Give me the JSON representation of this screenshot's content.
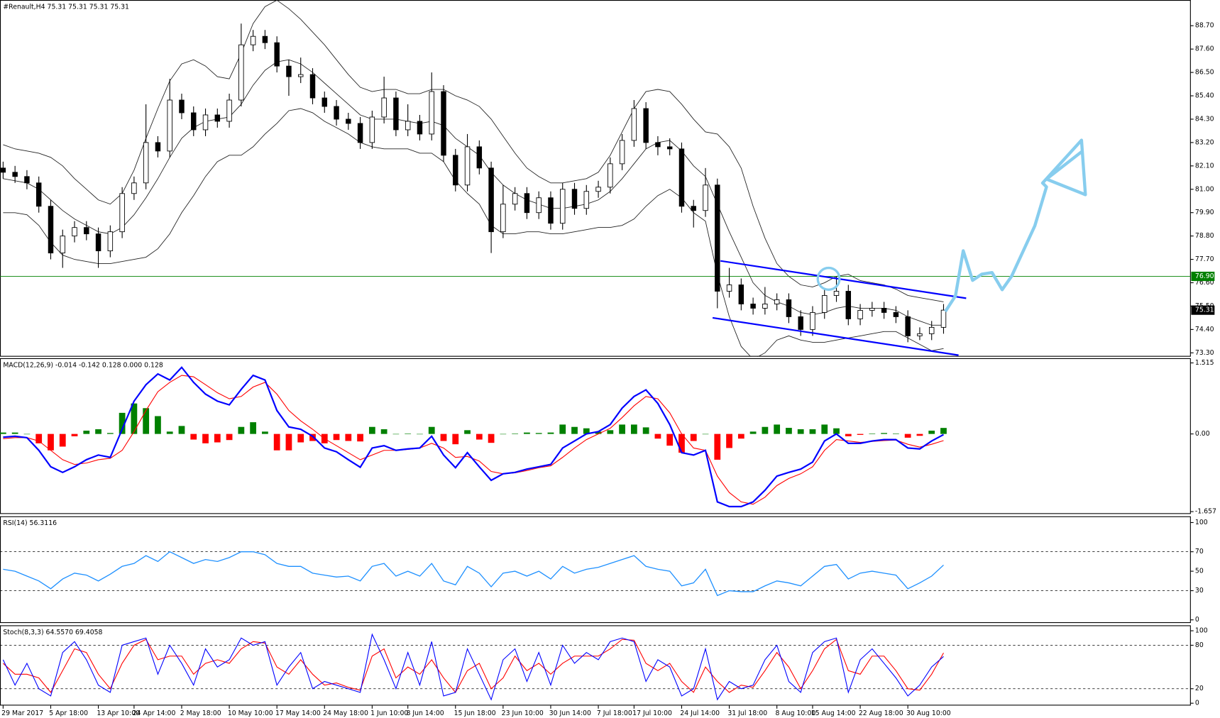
{
  "chart_data": [
    {
      "type": "candlestick",
      "title": "#Renault,H4  75.31 75.31 75.31 75.31",
      "categories": [
        "29 Mar 2017",
        null,
        null,
        null,
        "5 Apr 18:00",
        null,
        null,
        null,
        "13 Apr 10:00",
        null,
        null,
        "24 Apr 14:00",
        null,
        null,
        null,
        "2 May 18:00",
        null,
        null,
        null,
        "10 May 10:00",
        null,
        null,
        null,
        "17 May 14:00",
        null,
        null,
        null,
        "24 May 18:00",
        null,
        null,
        null,
        "1 Jun 10:00",
        null,
        null,
        "8 Jun 14:00",
        null,
        null,
        null,
        "15 Jun 18:00",
        null,
        null,
        null,
        "23 Jun 10:00",
        null,
        null,
        null,
        "30 Jun 14:00",
        null,
        null,
        null,
        "7 Jul 18:00",
        null,
        null,
        "17 Jul 10:00",
        null,
        null,
        null,
        "24 Jul 14:00",
        null,
        null,
        null,
        "31 Jul 18:00",
        null,
        null,
        null,
        "8 Aug 10:00",
        null,
        null,
        "15 Aug 14:00",
        null,
        null,
        null,
        "22 Aug 18:00",
        null,
        null,
        null,
        "30 Aug 10:00",
        null,
        null,
        null
      ],
      "open": [
        82.0,
        81.8,
        81.6,
        81.3,
        80.2,
        78.0,
        78.8,
        79.2,
        78.9,
        78.1,
        79.0,
        80.8,
        81.3,
        83.2,
        82.8,
        85.2,
        84.6,
        83.8,
        84.5,
        84.2,
        85.2,
        87.8,
        88.2,
        87.9,
        86.8,
        86.3,
        86.4,
        85.3,
        84.9,
        84.3,
        84.1,
        83.2,
        84.4,
        85.3,
        83.8,
        84.2,
        83.6,
        85.6,
        82.6,
        81.2,
        83.0,
        82.0,
        79.0,
        80.3,
        80.8,
        79.9,
        80.6,
        79.4,
        81.0,
        80.1,
        80.9,
        81.1,
        82.2,
        83.3,
        84.8,
        83.2,
        83.0,
        82.9,
        80.2,
        80.0,
        81.2,
        76.2,
        76.5,
        75.6,
        75.4,
        75.6,
        75.8,
        75.0,
        74.4,
        75.2,
        76.0,
        76.2,
        74.9,
        75.3,
        75.4,
        75.2,
        75.0,
        74.1,
        74.2,
        74.5
      ],
      "high": [
        82.3,
        82.1,
        81.9,
        81.6,
        80.5,
        79.1,
        79.5,
        79.5,
        79.2,
        79.3,
        81.1,
        81.6,
        85.0,
        83.5,
        86.2,
        85.5,
        84.9,
        84.8,
        84.8,
        85.5,
        88.8,
        88.5,
        88.5,
        88.2,
        87.1,
        87.2,
        86.7,
        85.6,
        85.2,
        84.6,
        84.4,
        84.7,
        86.3,
        85.6,
        85.0,
        84.5,
        86.5,
        85.9,
        82.9,
        83.6,
        83.3,
        82.3,
        81.2,
        81.1,
        81.1,
        80.9,
        80.9,
        81.3,
        81.3,
        81.2,
        81.4,
        82.5,
        83.6,
        85.2,
        85.1,
        83.5,
        83.4,
        83.2,
        80.5,
        82.0,
        81.5,
        77.3,
        76.8,
        75.9,
        76.4,
        76.1,
        76.1,
        75.3,
        75.5,
        76.3,
        76.9,
        76.5,
        75.6,
        75.7,
        75.7,
        75.5,
        75.3,
        74.5,
        74.8,
        75.6
      ],
      "low": [
        81.5,
        81.3,
        81.0,
        79.9,
        77.7,
        77.3,
        78.5,
        78.6,
        77.3,
        77.8,
        78.7,
        80.5,
        81.0,
        82.5,
        82.5,
        84.3,
        83.5,
        83.5,
        83.9,
        83.9,
        84.9,
        87.5,
        87.6,
        86.5,
        85.4,
        86.0,
        85.0,
        84.6,
        84.0,
        83.8,
        82.9,
        82.9,
        84.1,
        83.5,
        83.5,
        83.3,
        83.3,
        82.3,
        80.9,
        80.9,
        81.7,
        78.0,
        78.7,
        80.0,
        79.6,
        79.6,
        79.1,
        79.1,
        79.8,
        79.8,
        80.6,
        80.8,
        81.9,
        83.0,
        82.9,
        82.6,
        82.6,
        79.9,
        79.2,
        79.7,
        75.4,
        75.9,
        75.3,
        75.1,
        75.1,
        75.3,
        74.7,
        74.1,
        74.1,
        74.9,
        75.7,
        74.6,
        74.6,
        75.0,
        74.9,
        74.7,
        73.8,
        73.9,
        73.9,
        74.2
      ],
      "close": [
        81.8,
        81.6,
        81.3,
        80.2,
        78.0,
        78.8,
        79.2,
        78.9,
        78.1,
        79.0,
        80.8,
        81.3,
        83.2,
        82.8,
        85.2,
        84.6,
        83.8,
        84.5,
        84.2,
        85.2,
        87.8,
        88.2,
        87.9,
        86.8,
        86.3,
        86.4,
        85.3,
        84.9,
        84.3,
        84.1,
        83.2,
        84.4,
        85.3,
        83.8,
        84.2,
        83.6,
        85.6,
        82.6,
        81.2,
        83.0,
        82.0,
        79.0,
        80.3,
        80.8,
        79.9,
        80.6,
        79.4,
        81.0,
        80.1,
        80.9,
        81.1,
        82.2,
        83.3,
        84.8,
        83.2,
        83.0,
        82.9,
        80.2,
        80.0,
        81.2,
        76.2,
        76.5,
        75.6,
        75.4,
        75.6,
        75.8,
        75.0,
        74.4,
        75.2,
        76.0,
        76.2,
        74.9,
        75.3,
        75.4,
        75.2,
        75.0,
        74.1,
        74.2,
        74.5,
        75.31
      ],
      "bands": {
        "upper": [
          83.1,
          82.9,
          82.8,
          82.7,
          82.5,
          82.1,
          81.5,
          81.0,
          80.5,
          80.3,
          80.8,
          81.9,
          83.4,
          84.8,
          86.1,
          86.9,
          87.1,
          86.8,
          86.3,
          86.2,
          87.4,
          88.8,
          89.6,
          89.9,
          89.5,
          89.0,
          88.4,
          87.8,
          87.1,
          86.4,
          85.8,
          85.6,
          85.7,
          85.7,
          85.5,
          85.5,
          85.7,
          85.7,
          85.4,
          85.2,
          84.9,
          84.3,
          83.5,
          82.7,
          82.0,
          81.6,
          81.3,
          81.3,
          81.4,
          81.5,
          81.8,
          82.6,
          83.7,
          84.8,
          85.6,
          85.7,
          85.6,
          85.0,
          84.3,
          83.7,
          83.6,
          83.0,
          82.0,
          80.2,
          78.7,
          77.5,
          76.9,
          76.5,
          76.4,
          76.6,
          76.9,
          77.0,
          76.7,
          76.6,
          76.5,
          76.3,
          76.0,
          75.9,
          75.8,
          75.7
        ],
        "middle": [
          81.5,
          81.4,
          81.3,
          81.0,
          80.5,
          80.0,
          79.6,
          79.3,
          79.0,
          78.9,
          79.2,
          79.8,
          80.6,
          81.5,
          82.5,
          83.4,
          83.9,
          84.2,
          84.3,
          84.4,
          85.0,
          85.9,
          86.6,
          87.0,
          87.1,
          86.9,
          86.5,
          86.0,
          85.5,
          85.0,
          84.5,
          84.3,
          84.3,
          84.3,
          84.2,
          84.1,
          84.2,
          84.0,
          83.4,
          83.0,
          82.6,
          81.8,
          81.2,
          80.8,
          80.5,
          80.3,
          80.1,
          80.1,
          80.2,
          80.3,
          80.5,
          80.9,
          81.5,
          82.2,
          82.9,
          83.2,
          83.3,
          82.8,
          82.1,
          81.6,
          80.3,
          79.0,
          77.8,
          76.6,
          76.0,
          75.7,
          75.5,
          75.2,
          75.1,
          75.2,
          75.4,
          75.5,
          75.4,
          75.4,
          75.4,
          75.3,
          75.0,
          74.8,
          74.6,
          74.6
        ],
        "lower": [
          79.9,
          79.9,
          79.8,
          79.3,
          78.5,
          77.9,
          77.7,
          77.6,
          77.5,
          77.5,
          77.6,
          77.7,
          77.8,
          78.2,
          78.9,
          79.9,
          80.7,
          81.6,
          82.3,
          82.6,
          82.6,
          83.0,
          83.6,
          84.1,
          84.7,
          84.8,
          84.6,
          84.2,
          83.9,
          83.6,
          83.2,
          83.0,
          82.9,
          82.9,
          82.9,
          82.7,
          82.7,
          82.3,
          81.4,
          80.8,
          80.3,
          79.3,
          78.9,
          78.9,
          79.0,
          79.0,
          78.9,
          78.9,
          79.0,
          79.1,
          79.2,
          79.2,
          79.3,
          79.6,
          80.2,
          80.7,
          81.0,
          80.6,
          79.9,
          79.5,
          77.0,
          75.0,
          73.6,
          73.0,
          73.3,
          73.9,
          74.1,
          73.9,
          73.8,
          73.8,
          73.9,
          74.0,
          74.1,
          74.2,
          74.3,
          74.3,
          74.0,
          73.7,
          73.4,
          73.5
        ]
      },
      "ylim": [
        73.12,
        89.91
      ],
      "yticks": [
        {
          "value": 88.7,
          "label": "88.70"
        },
        {
          "value": 87.6,
          "label": "87.60"
        },
        {
          "value": 86.5,
          "label": "86.50"
        },
        {
          "value": 85.4,
          "label": "85.40"
        },
        {
          "value": 84.3,
          "label": "84.30"
        },
        {
          "value": 83.2,
          "label": "83.20"
        },
        {
          "value": 82.1,
          "label": "82.10"
        },
        {
          "value": 81.0,
          "label": "81.00"
        },
        {
          "value": 79.9,
          "label": "79.90"
        },
        {
          "value": 78.8,
          "label": "78.80"
        },
        {
          "value": 77.7,
          "label": "77.70"
        },
        {
          "value": 76.6,
          "label": "76.60"
        },
        {
          "value": 75.5,
          "label": "75.50"
        },
        {
          "value": 74.4,
          "label": "74.40"
        },
        {
          "value": 73.3,
          "label": "73.30"
        }
      ],
      "hline": {
        "value": 76.9,
        "label": "76.90",
        "color": "#008000"
      },
      "last": {
        "value": 75.31,
        "label": "75.31"
      },
      "trendlines": [
        {
          "x": [
            60.26,
            80.9
          ],
          "y": [
            77.63,
            75.87
          ]
        },
        {
          "x": [
            59.6,
            80.26
          ],
          "y": [
            74.95,
            73.19
          ]
        }
      ],
      "trendline_color": "#0000ff"
    },
    {
      "type": "macd",
      "title": "MACD(12,26,9) -0.014 -0.142 0.128 0.000 0.128",
      "macd": [
        -0.07,
        -0.05,
        -0.08,
        -0.35,
        -0.7,
        -0.82,
        -0.7,
        -0.55,
        -0.45,
        -0.5,
        0.1,
        0.7,
        1.05,
        1.28,
        1.15,
        1.42,
        1.1,
        0.85,
        0.7,
        0.62,
        0.95,
        1.25,
        1.15,
        0.5,
        0.15,
        0.1,
        -0.05,
        -0.3,
        -0.38,
        -0.55,
        -0.71,
        -0.3,
        -0.25,
        -0.35,
        -0.32,
        -0.3,
        -0.05,
        -0.45,
        -0.72,
        -0.4,
        -0.7,
        -0.99,
        -0.85,
        -0.82,
        -0.75,
        -0.7,
        -0.65,
        -0.3,
        -0.15,
        0.0,
        0.05,
        0.2,
        0.55,
        0.8,
        0.94,
        0.65,
        0.2,
        -0.4,
        -0.45,
        -0.35,
        -1.45,
        -1.55,
        -1.55,
        -1.45,
        -1.2,
        -0.9,
        -0.82,
        -0.75,
        -0.6,
        -0.15,
        0.0,
        -0.2,
        -0.2,
        -0.15,
        -0.12,
        -0.12,
        -0.3,
        -0.32,
        -0.15,
        -0.014
      ],
      "signal": [
        -0.1,
        -0.08,
        -0.08,
        -0.15,
        -0.35,
        -0.55,
        -0.65,
        -0.62,
        -0.55,
        -0.52,
        -0.35,
        0.05,
        0.5,
        0.9,
        1.1,
        1.25,
        1.22,
        1.05,
        0.88,
        0.75,
        0.8,
        1.0,
        1.1,
        0.85,
        0.5,
        0.28,
        0.1,
        -0.1,
        -0.25,
        -0.4,
        -0.55,
        -0.45,
        -0.35,
        -0.35,
        -0.33,
        -0.3,
        -0.2,
        -0.3,
        -0.5,
        -0.48,
        -0.58,
        -0.8,
        -0.85,
        -0.83,
        -0.78,
        -0.72,
        -0.68,
        -0.5,
        -0.3,
        -0.12,
        0.0,
        0.12,
        0.35,
        0.6,
        0.8,
        0.75,
        0.45,
        0.0,
        -0.3,
        -0.35,
        -0.9,
        -1.25,
        -1.45,
        -1.5,
        -1.35,
        -1.1,
        -0.95,
        -0.85,
        -0.7,
        -0.35,
        -0.12,
        -0.15,
        -0.18,
        -0.16,
        -0.14,
        -0.13,
        -0.22,
        -0.28,
        -0.22,
        -0.142
      ],
      "histogram": [
        0.03,
        0.03,
        0.0,
        -0.2,
        -0.35,
        -0.27,
        -0.05,
        0.07,
        0.1,
        0.02,
        0.45,
        0.65,
        0.55,
        0.38,
        0.05,
        0.17,
        -0.12,
        -0.2,
        -0.18,
        -0.13,
        0.15,
        0.25,
        0.05,
        -0.35,
        -0.35,
        -0.18,
        -0.15,
        -0.2,
        -0.13,
        -0.15,
        -0.16,
        0.15,
        0.1,
        0.0,
        0.01,
        0.0,
        0.15,
        -0.15,
        -0.22,
        0.08,
        -0.12,
        -0.19,
        0.0,
        0.01,
        0.03,
        0.02,
        0.03,
        0.2,
        0.15,
        0.12,
        0.05,
        0.08,
        0.2,
        0.2,
        0.14,
        -0.1,
        -0.25,
        -0.4,
        -0.15,
        0.0,
        -0.55,
        -0.3,
        -0.1,
        0.05,
        0.15,
        0.2,
        0.13,
        0.1,
        0.1,
        0.2,
        0.12,
        -0.05,
        -0.02,
        0.01,
        0.02,
        0.01,
        -0.08,
        -0.04,
        0.07,
        0.128
      ],
      "colors": {
        "macd": "#0000ff",
        "signal": "#ff0000",
        "up": "#008000",
        "down": "#ff0000"
      },
      "ylim": [
        -1.707,
        1.615
      ],
      "yticks": [
        1.515,
        {
          "value": 0,
          "label": "0.00"
        },
        -1.657
      ]
    },
    {
      "type": "line",
      "title": "RSI(14) 56.3116",
      "values": [
        52,
        50,
        45,
        40,
        32,
        42,
        48,
        46,
        40,
        47,
        55,
        58,
        66,
        60,
        70,
        64,
        58,
        62,
        60,
        64,
        70,
        70,
        67,
        58,
        55,
        55,
        48,
        46,
        44,
        45,
        40,
        55,
        58,
        45,
        50,
        45,
        58,
        40,
        36,
        55,
        48,
        34,
        48,
        50,
        45,
        50,
        42,
        55,
        48,
        52,
        54,
        58,
        62,
        66,
        55,
        52,
        50,
        35,
        38,
        52,
        25,
        30,
        29,
        29,
        35,
        40,
        38,
        35,
        45,
        55,
        57,
        42,
        48,
        50,
        48,
        46,
        32,
        38,
        45,
        56.3116
      ],
      "color": "#1e90ff",
      "ylim": [
        -3.2,
        106.4
      ],
      "yticks": [
        0,
        30,
        50,
        70,
        100
      ],
      "levels": [
        30,
        70
      ]
    },
    {
      "type": "stochastic",
      "title": "Stoch(8,3,3) 64.5570 69.4058",
      "main": [
        60,
        25,
        55,
        20,
        10,
        70,
        85,
        60,
        25,
        15,
        80,
        85,
        90,
        40,
        80,
        55,
        25,
        75,
        50,
        60,
        90,
        80,
        85,
        25,
        50,
        70,
        20,
        30,
        25,
        20,
        15,
        95,
        60,
        20,
        70,
        25,
        85,
        10,
        15,
        75,
        40,
        5,
        60,
        75,
        30,
        70,
        25,
        80,
        55,
        70,
        60,
        85,
        90,
        85,
        30,
        60,
        50,
        10,
        20,
        75,
        5,
        30,
        20,
        25,
        60,
        80,
        30,
        15,
        70,
        85,
        90,
        15,
        60,
        75,
        55,
        35,
        10,
        25,
        50,
        64.557
      ],
      "signal": [
        55,
        40,
        40,
        35,
        15,
        45,
        75,
        70,
        40,
        20,
        55,
        80,
        88,
        60,
        65,
        65,
        40,
        55,
        60,
        55,
        75,
        85,
        83,
        50,
        40,
        60,
        40,
        25,
        28,
        22,
        18,
        65,
        75,
        35,
        50,
        40,
        60,
        35,
        15,
        45,
        55,
        20,
        35,
        65,
        45,
        55,
        40,
        55,
        65,
        65,
        65,
        75,
        88,
        87,
        55,
        45,
        55,
        30,
        15,
        50,
        30,
        15,
        25,
        22,
        45,
        70,
        50,
        20,
        45,
        75,
        88,
        45,
        40,
        65,
        65,
        45,
        20,
        18,
        40,
        69.4058
      ],
      "colors": {
        "main": "#0000ff",
        "signal": "#ff0000"
      },
      "ylim": [
        -3.2,
        107.5
      ],
      "yticks": [
        0,
        20,
        80,
        100
      ],
      "levels": [
        20,
        80
      ]
    }
  ]
}
